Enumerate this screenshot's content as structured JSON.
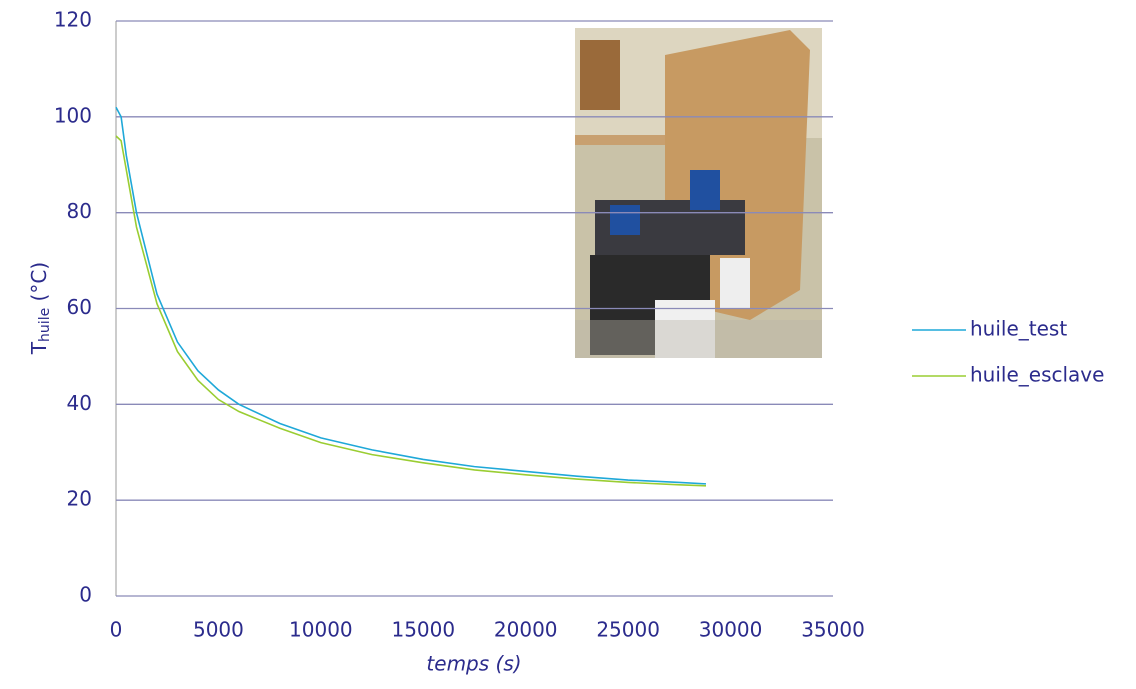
{
  "chart_data": {
    "type": "line",
    "y_label": {
      "main": "T",
      "sub": "huile",
      "unit": " (°C)"
    },
    "x_label": "temps (s)",
    "x": [
      0,
      250,
      500,
      1000,
      2000,
      3000,
      4000,
      5000,
      6000,
      8000,
      10000,
      12500,
      15000,
      17500,
      20000,
      22500,
      25000,
      27500,
      28800
    ],
    "series": [
      {
        "name": "huile_test",
        "color": "#1fa8d8",
        "values": [
          102,
          100,
          92,
          80,
          63,
          53,
          47,
          43,
          40,
          36,
          33,
          30.5,
          28.5,
          27,
          26,
          25,
          24.2,
          23.7,
          23.4
        ]
      },
      {
        "name": "huile_esclave",
        "color": "#9acd32",
        "values": [
          96,
          95,
          89,
          77,
          61,
          51,
          45,
          41,
          38.5,
          35,
          32,
          29.5,
          27.8,
          26.3,
          25.3,
          24.4,
          23.7,
          23.2,
          23
        ]
      }
    ],
    "xlim": [
      0,
      35000
    ],
    "xticks": [
      0,
      5000,
      10000,
      15000,
      20000,
      25000,
      30000,
      35000
    ],
    "ylim": [
      0,
      120
    ],
    "yticks": [
      0,
      20,
      40,
      60,
      80,
      100,
      120
    ],
    "grid": true,
    "legend": "right"
  }
}
